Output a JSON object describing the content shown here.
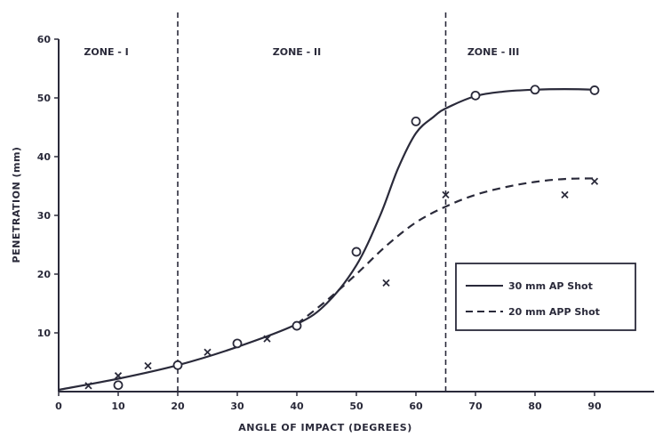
{
  "chart_data": {
    "type": "line",
    "title": "",
    "xlabel": "ANGLE OF IMPACT (DEGREES)",
    "ylabel": "PENETRATION (mm)",
    "xlim": [
      0,
      100
    ],
    "ylim": [
      0,
      60
    ],
    "x_tick_values": [
      0,
      10,
      20,
      30,
      40,
      50,
      60,
      70,
      80,
      90
    ],
    "x_tick_labels": [
      "0",
      "10",
      "20",
      "30",
      "40",
      "50",
      "60",
      "70",
      "80",
      "90"
    ],
    "y_tick_values": [
      10,
      20,
      30,
      40,
      50,
      60
    ],
    "y_tick_labels": [
      "10",
      "20",
      "30",
      "40",
      "50",
      "60"
    ],
    "zone_boundaries": [
      20,
      65
    ],
    "zones": [
      {
        "label": "ZONE - I",
        "x": 8
      },
      {
        "label": "ZONE - II",
        "x": 40
      },
      {
        "label": "ZONE - III",
        "x": 73
      }
    ],
    "legend_position": "right",
    "series": [
      {
        "name": "30 mm AP Shot",
        "line_style": "solid",
        "marker": "circle",
        "points": [
          {
            "x": 10,
            "y": 1.1
          },
          {
            "x": 20,
            "y": 4.5
          },
          {
            "x": 30,
            "y": 8.2
          },
          {
            "x": 40,
            "y": 11.2
          },
          {
            "x": 50,
            "y": 23.8
          },
          {
            "x": 60,
            "y": 46
          },
          {
            "x": 70,
            "y": 50.4
          },
          {
            "x": 80,
            "y": 51.4
          },
          {
            "x": 90,
            "y": 51.3
          }
        ],
        "curve": [
          {
            "x": 0,
            "y": 0.3
          },
          {
            "x": 10,
            "y": 2.2
          },
          {
            "x": 20,
            "y": 4.5
          },
          {
            "x": 30,
            "y": 7.6
          },
          {
            "x": 40,
            "y": 11.5
          },
          {
            "x": 45,
            "y": 15
          },
          {
            "x": 50,
            "y": 21.5
          },
          {
            "x": 54,
            "y": 30
          },
          {
            "x": 57,
            "y": 38
          },
          {
            "x": 60,
            "y": 44
          },
          {
            "x": 63,
            "y": 46.8
          },
          {
            "x": 65,
            "y": 48.2
          },
          {
            "x": 70,
            "y": 50.3
          },
          {
            "x": 75,
            "y": 51.1
          },
          {
            "x": 80,
            "y": 51.4
          },
          {
            "x": 85,
            "y": 51.5
          },
          {
            "x": 90,
            "y": 51.4
          }
        ]
      },
      {
        "name": "20 mm APP Shot",
        "line_style": "dashed",
        "marker": "x",
        "points": [
          {
            "x": 5,
            "y": 1
          },
          {
            "x": 10,
            "y": 2.7
          },
          {
            "x": 15,
            "y": 4.4
          },
          {
            "x": 25,
            "y": 6.7
          },
          {
            "x": 35,
            "y": 9
          },
          {
            "x": 55,
            "y": 18.5
          },
          {
            "x": 65,
            "y": 33.5
          },
          {
            "x": 85,
            "y": 33.5
          },
          {
            "x": 90,
            "y": 35.8
          }
        ],
        "curve": [
          {
            "x": 40,
            "y": 11.5
          },
          {
            "x": 45,
            "y": 15.5
          },
          {
            "x": 50,
            "y": 20
          },
          {
            "x": 55,
            "y": 24.8
          },
          {
            "x": 60,
            "y": 28.8
          },
          {
            "x": 65,
            "y": 31.5
          },
          {
            "x": 70,
            "y": 33.5
          },
          {
            "x": 75,
            "y": 34.8
          },
          {
            "x": 80,
            "y": 35.7
          },
          {
            "x": 85,
            "y": 36.2
          },
          {
            "x": 90,
            "y": 36.3
          }
        ]
      }
    ]
  }
}
